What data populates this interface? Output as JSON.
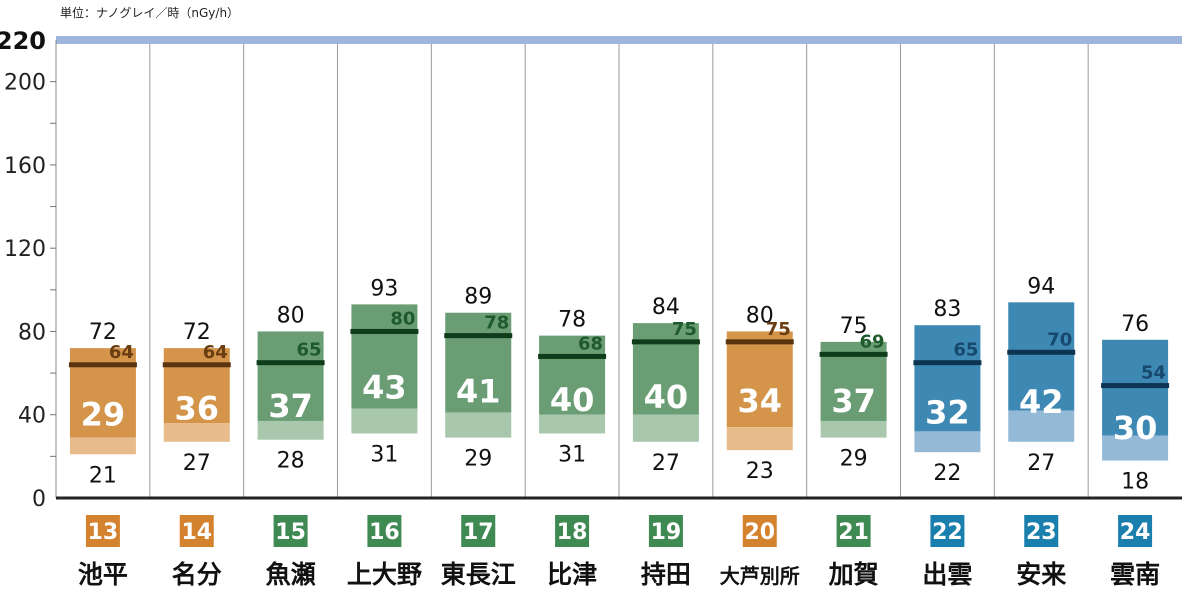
{
  "unit_label": "単位：ナノグレイ／時（nGy/h）",
  "palette": {
    "orange": {
      "bar": "#d4944a",
      "low": "#e8bb8a",
      "line": "#5a3311",
      "text": "#6b3d12",
      "badge": "#d4822e"
    },
    "green": {
      "bar": "#6a9d74",
      "low": "#a9c7ad",
      "line": "#0f3d1b",
      "text": "#1f5a2d",
      "badge": "#3e8a52"
    },
    "blue": {
      "bar": "#3e88b4",
      "low": "#93b9d6",
      "line": "#0d3450",
      "text": "#17486d",
      "badge": "#1b7fae"
    }
  },
  "chart_data": {
    "type": "bar",
    "ylim": [
      0,
      220
    ],
    "y_ticks": [
      "0",
      "40",
      "80",
      "120",
      "160",
      "200",
      "220"
    ],
    "series_fields": [
      "max",
      "min",
      "avg_line",
      "center_value"
    ],
    "stations": [
      {
        "no": "13",
        "name": "池平",
        "group": "orange",
        "max": 72,
        "min": 21,
        "avg": 64,
        "value": 29
      },
      {
        "no": "14",
        "name": "名分",
        "group": "orange",
        "max": 72,
        "min": 27,
        "avg": 64,
        "value": 36
      },
      {
        "no": "15",
        "name": "魚瀬",
        "group": "green",
        "max": 80,
        "min": 28,
        "avg": 65,
        "value": 37
      },
      {
        "no": "16",
        "name": "上大野",
        "group": "green",
        "max": 93,
        "min": 31,
        "avg": 80,
        "value": 43
      },
      {
        "no": "17",
        "name": "東長江",
        "group": "green",
        "max": 89,
        "min": 29,
        "avg": 78,
        "value": 41
      },
      {
        "no": "18",
        "name": "比津",
        "group": "green",
        "max": 78,
        "min": 31,
        "avg": 68,
        "value": 40
      },
      {
        "no": "19",
        "name": "持田",
        "group": "green",
        "max": 84,
        "min": 27,
        "avg": 75,
        "value": 40
      },
      {
        "no": "20",
        "name": "大芦別所",
        "group": "orange",
        "max": 80,
        "min": 23,
        "avg": 75,
        "value": 34
      },
      {
        "no": "21",
        "name": "加賀",
        "group": "green",
        "max": 75,
        "min": 29,
        "avg": 69,
        "value": 37
      },
      {
        "no": "22",
        "name": "出雲",
        "group": "blue",
        "max": 83,
        "min": 22,
        "avg": 65,
        "value": 32
      },
      {
        "no": "23",
        "name": "安来",
        "group": "blue",
        "max": 94,
        "min": 27,
        "avg": 70,
        "value": 42
      },
      {
        "no": "24",
        "name": "雲南",
        "group": "blue",
        "max": 76,
        "min": 18,
        "avg": 54,
        "value": 30
      }
    ]
  }
}
